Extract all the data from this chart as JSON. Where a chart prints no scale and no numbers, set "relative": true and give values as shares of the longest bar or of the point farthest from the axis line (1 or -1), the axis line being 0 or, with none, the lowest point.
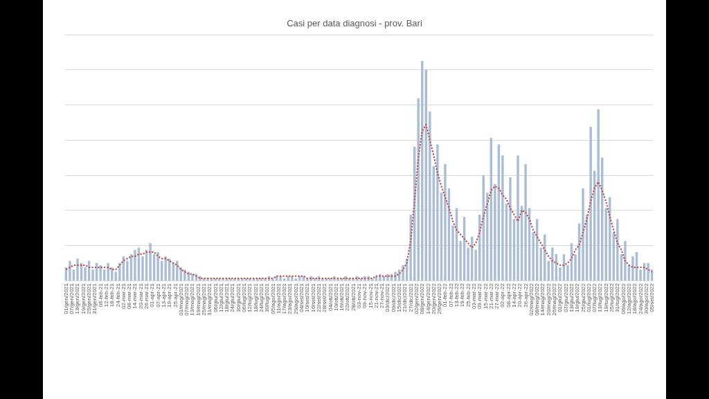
{
  "chart_data": {
    "type": "bar",
    "title": "Casi per data diagnosi - prov. Bari",
    "relative": true,
    "grid": "y",
    "x": [
      "2021-01-01",
      "2021-01-05",
      "2021-01-09",
      "2021-01-13",
      "2021-01-17",
      "2021-01-21",
      "2021-01-25",
      "2021-01-29",
      "2021-02-02",
      "2021-02-06",
      "2021-02-10",
      "2021-02-14",
      "2021-02-18",
      "2021-02-22",
      "2021-02-26",
      "2021-03-02",
      "2021-03-06",
      "2021-03-10",
      "2021-03-14",
      "2021-03-18",
      "2021-03-22",
      "2021-03-26",
      "2021-03-30",
      "2021-04-03",
      "2021-04-07",
      "2021-04-11",
      "2021-04-15",
      "2021-04-19",
      "2021-04-23",
      "2021-04-27",
      "2021-05-01",
      "2021-05-05",
      "2021-05-09",
      "2021-05-13",
      "2021-05-17",
      "2021-05-21",
      "2021-05-25",
      "2021-05-29",
      "2021-06-02",
      "2021-06-06",
      "2021-06-10",
      "2021-06-14",
      "2021-06-18",
      "2021-06-22",
      "2021-06-26",
      "2021-06-30",
      "2021-07-04",
      "2021-07-08",
      "2021-07-12",
      "2021-07-16",
      "2021-07-20",
      "2021-07-24",
      "2021-07-28",
      "2021-08-01",
      "2021-08-05",
      "2021-08-09",
      "2021-08-13",
      "2021-08-17",
      "2021-08-21",
      "2021-08-25",
      "2021-08-29",
      "2021-09-02",
      "2021-09-06",
      "2021-09-10",
      "2021-09-14",
      "2021-09-18",
      "2021-09-22",
      "2021-09-26",
      "2021-09-30",
      "2021-10-04",
      "2021-10-08",
      "2021-10-12",
      "2021-10-16",
      "2021-10-20",
      "2021-10-24",
      "2021-10-28",
      "2021-11-01",
      "2021-11-05",
      "2021-11-09",
      "2021-11-13",
      "2021-11-17",
      "2021-11-21",
      "2021-11-25",
      "2021-11-29",
      "2021-12-03",
      "2021-12-07",
      "2021-12-11",
      "2021-12-15",
      "2021-12-19",
      "2021-12-23",
      "2021-12-27",
      "2021-12-31",
      "2022-01-04",
      "2022-01-08",
      "2022-01-12",
      "2022-01-16",
      "2022-01-20",
      "2022-01-24",
      "2022-01-28",
      "2022-02-01",
      "2022-02-05",
      "2022-02-09",
      "2022-02-13",
      "2022-02-17",
      "2022-02-21",
      "2022-02-25",
      "2022-03-01",
      "2022-03-05",
      "2022-03-09",
      "2022-03-13",
      "2022-03-17",
      "2022-03-21",
      "2022-03-25",
      "2022-03-29",
      "2022-04-02",
      "2022-04-06",
      "2022-04-10",
      "2022-04-14",
      "2022-04-18",
      "2022-04-22",
      "2022-04-26",
      "2022-04-30",
      "2022-05-04",
      "2022-05-08",
      "2022-05-12",
      "2022-05-16",
      "2022-05-20",
      "2022-05-24",
      "2022-05-28",
      "2022-06-01",
      "2022-06-05",
      "2022-06-09",
      "2022-06-13",
      "2022-06-17",
      "2022-06-21",
      "2022-06-25",
      "2022-06-29",
      "2022-07-03",
      "2022-07-07",
      "2022-07-11",
      "2022-07-15",
      "2022-07-19",
      "2022-07-23",
      "2022-07-27",
      "2022-07-31",
      "2022-08-04",
      "2022-08-08",
      "2022-08-12",
      "2022-08-16",
      "2022-08-20",
      "2022-08-24",
      "2022-08-28",
      "2022-09-01",
      "2022-09-05"
    ],
    "xlim": [
      "2020-12-31",
      "2022-09-06"
    ],
    "xticks": [
      {
        "value": "2021-01-01",
        "label": "01/gen/2021"
      },
      {
        "value": "2021-01-07",
        "label": "07/gen/2021"
      },
      {
        "value": "2021-01-13",
        "label": "13/gen/2021"
      },
      {
        "value": "2021-01-19",
        "label": "19/gen/2021"
      },
      {
        "value": "2021-01-25",
        "label": "25/gen/2021"
      },
      {
        "value": "2021-01-31",
        "label": "31/gen/2021"
      },
      {
        "value": "2021-02-06",
        "label": "06-feb-21"
      },
      {
        "value": "2021-02-12",
        "label": "12-feb-21"
      },
      {
        "value": "2021-02-18",
        "label": "18-feb-21"
      },
      {
        "value": "2021-02-24",
        "label": "24-feb-21"
      },
      {
        "value": "2021-03-02",
        "label": "02-mar-21"
      },
      {
        "value": "2021-03-08",
        "label": "08-mar-21"
      },
      {
        "value": "2021-03-14",
        "label": "14-mar-21"
      },
      {
        "value": "2021-03-20",
        "label": "20-mar-21"
      },
      {
        "value": "2021-03-26",
        "label": "26-mar-21"
      },
      {
        "value": "2021-04-01",
        "label": "01-apr-21"
      },
      {
        "value": "2021-04-07",
        "label": "07-apr-21"
      },
      {
        "value": "2021-04-13",
        "label": "13-apr-21"
      },
      {
        "value": "2021-04-19",
        "label": "19-apr-21"
      },
      {
        "value": "2021-04-25",
        "label": "25-apr-21"
      },
      {
        "value": "2021-05-01",
        "label": "01/mag/2021"
      },
      {
        "value": "2021-05-07",
        "label": "07/mag/2021"
      },
      {
        "value": "2021-05-13",
        "label": "13/mag/2021"
      },
      {
        "value": "2021-05-19",
        "label": "19/mag/2021"
      },
      {
        "value": "2021-05-25",
        "label": "25/mag/2021"
      },
      {
        "value": "2021-05-31",
        "label": "31/mag/2021"
      },
      {
        "value": "2021-06-06",
        "label": "06/giu/2021"
      },
      {
        "value": "2021-06-12",
        "label": "12/giu/2021"
      },
      {
        "value": "2021-06-18",
        "label": "18/giu/2021"
      },
      {
        "value": "2021-06-24",
        "label": "24/giu/2021"
      },
      {
        "value": "2021-06-30",
        "label": "30/giu/2021"
      },
      {
        "value": "2021-07-06",
        "label": "06/lug/2021"
      },
      {
        "value": "2021-07-12",
        "label": "12/lug/2021"
      },
      {
        "value": "2021-07-18",
        "label": "18/lug/2021"
      },
      {
        "value": "2021-07-24",
        "label": "24/lug/2021"
      },
      {
        "value": "2021-07-30",
        "label": "30/lug/2021"
      },
      {
        "value": "2021-08-05",
        "label": "05/ago/2021"
      },
      {
        "value": "2021-08-11",
        "label": "11/ago/2021"
      },
      {
        "value": "2021-08-17",
        "label": "17/ago/2021"
      },
      {
        "value": "2021-08-23",
        "label": "23/ago/2021"
      },
      {
        "value": "2021-08-29",
        "label": "29/ago/2021"
      },
      {
        "value": "2021-09-04",
        "label": "04/set/2021"
      },
      {
        "value": "2021-09-10",
        "label": "10/set/2021"
      },
      {
        "value": "2021-09-16",
        "label": "16/set/2021"
      },
      {
        "value": "2021-09-22",
        "label": "22/set/2021"
      },
      {
        "value": "2021-09-28",
        "label": "28/set/2021"
      },
      {
        "value": "2021-10-04",
        "label": "04/ott/2021"
      },
      {
        "value": "2021-10-10",
        "label": "10/ott/2021"
      },
      {
        "value": "2021-10-16",
        "label": "16/ott/2021"
      },
      {
        "value": "2021-10-22",
        "label": "22/ott/2021"
      },
      {
        "value": "2021-10-28",
        "label": "28/ott/2021"
      },
      {
        "value": "2021-11-03",
        "label": "03-nov-21"
      },
      {
        "value": "2021-11-09",
        "label": "09-nov-21"
      },
      {
        "value": "2021-11-15",
        "label": "15-nov-21"
      },
      {
        "value": "2021-11-21",
        "label": "21-nov-21"
      },
      {
        "value": "2021-11-27",
        "label": "27-nov-21"
      },
      {
        "value": "2021-12-03",
        "label": "03/dic/2021"
      },
      {
        "value": "2021-12-09",
        "label": "09/dic/2021"
      },
      {
        "value": "2021-12-15",
        "label": "15/dic/2021"
      },
      {
        "value": "2021-12-21",
        "label": "21/dic/2021"
      },
      {
        "value": "2021-12-27",
        "label": "27/dic/2021"
      },
      {
        "value": "2022-01-02",
        "label": "02/gen/2022"
      },
      {
        "value": "2022-01-08",
        "label": "08/gen/2022"
      },
      {
        "value": "2022-01-14",
        "label": "14/gen/2022"
      },
      {
        "value": "2022-01-20",
        "label": "20/gen/2022"
      },
      {
        "value": "2022-01-26",
        "label": "26/gen/2022"
      },
      {
        "value": "2022-02-01",
        "label": "01-feb-22"
      },
      {
        "value": "2022-02-07",
        "label": "07-feb-22"
      },
      {
        "value": "2022-02-13",
        "label": "13-feb-22"
      },
      {
        "value": "2022-02-19",
        "label": "19-feb-22"
      },
      {
        "value": "2022-02-25",
        "label": "25-feb-22"
      },
      {
        "value": "2022-03-03",
        "label": "03-mar-22"
      },
      {
        "value": "2022-03-09",
        "label": "09-mar-22"
      },
      {
        "value": "2022-03-15",
        "label": "15-mar-22"
      },
      {
        "value": "2022-03-21",
        "label": "21-mar-22"
      },
      {
        "value": "2022-03-27",
        "label": "27-mar-22"
      },
      {
        "value": "2022-04-02",
        "label": "02-apr-22"
      },
      {
        "value": "2022-04-08",
        "label": "08-apr-22"
      },
      {
        "value": "2022-04-14",
        "label": "14-apr-22"
      },
      {
        "value": "2022-04-20",
        "label": "20-apr-22"
      },
      {
        "value": "2022-04-26",
        "label": "26-apr-22"
      },
      {
        "value": "2022-05-02",
        "label": "02/mag/2022"
      },
      {
        "value": "2022-05-08",
        "label": "08/mag/2022"
      },
      {
        "value": "2022-05-14",
        "label": "14/mag/2022"
      },
      {
        "value": "2022-05-20",
        "label": "20/mag/2022"
      },
      {
        "value": "2022-05-26",
        "label": "26/mag/2022"
      },
      {
        "value": "2022-06-01",
        "label": "01/giu/2022"
      },
      {
        "value": "2022-06-07",
        "label": "07/giu/2022"
      },
      {
        "value": "2022-06-13",
        "label": "13/giu/2022"
      },
      {
        "value": "2022-06-19",
        "label": "19/giu/2022"
      },
      {
        "value": "2022-06-25",
        "label": "25/giu/2022"
      },
      {
        "value": "2022-07-01",
        "label": "01/lug/2022"
      },
      {
        "value": "2022-07-07",
        "label": "07/lug/2022"
      },
      {
        "value": "2022-07-13",
        "label": "13/lug/2022"
      },
      {
        "value": "2022-07-19",
        "label": "19/lug/2022"
      },
      {
        "value": "2022-07-25",
        "label": "25/lug/2022"
      },
      {
        "value": "2022-07-31",
        "label": "31/lug/2022"
      },
      {
        "value": "2022-08-06",
        "label": "06/ago/2022"
      },
      {
        "value": "2022-08-12",
        "label": "12/ago/2022"
      },
      {
        "value": "2022-08-18",
        "label": "18/ago/2022"
      },
      {
        "value": "2022-08-24",
        "label": "24/ago/2022"
      },
      {
        "value": "2022-08-30",
        "label": "30/ago/2022"
      },
      {
        "value": "2022-09-05",
        "label": "05/set/2022"
      }
    ],
    "series": [
      {
        "color": "#a9bed6",
        "values": [
          0.06,
          0.09,
          0.05,
          0.1,
          0.08,
          0.06,
          0.09,
          0.05,
          0.08,
          0.07,
          0.05,
          0.08,
          0.06,
          0.04,
          0.08,
          0.11,
          0.09,
          0.12,
          0.14,
          0.15,
          0.11,
          0.14,
          0.17,
          0.12,
          0.13,
          0.09,
          0.11,
          0.1,
          0.08,
          0.09,
          0.06,
          0.05,
          0.04,
          0.03,
          0.03,
          0.02,
          0.01,
          0.01,
          0.01,
          0.01,
          0.01,
          0.01,
          0.01,
          0.01,
          0.01,
          0.01,
          0.01,
          0.01,
          0.01,
          0.01,
          0.01,
          0.01,
          0.01,
          0.02,
          0.01,
          0.02,
          0.02,
          0.01,
          0.02,
          0.02,
          0.01,
          0.02,
          0.02,
          0.01,
          0.02,
          0.01,
          0.02,
          0.01,
          0.01,
          0.01,
          0.02,
          0.01,
          0.01,
          0.02,
          0.01,
          0.01,
          0.02,
          0.01,
          0.02,
          0.02,
          0.01,
          0.02,
          0.03,
          0.02,
          0.03,
          0.03,
          0.04,
          0.05,
          0.07,
          0.1,
          0.3,
          0.61,
          0.83,
          1,
          0.96,
          0.77,
          0.52,
          0.62,
          0.4,
          0.53,
          0.42,
          0.25,
          0.33,
          0.18,
          0.29,
          0.15,
          0.2,
          0.14,
          0.3,
          0.48,
          0.4,
          0.65,
          0.44,
          0.62,
          0.57,
          0.35,
          0.47,
          0.28,
          0.57,
          0.34,
          0.53,
          0.33,
          0.22,
          0.28,
          0.15,
          0.21,
          0.09,
          0.15,
          0.12,
          0.06,
          0.12,
          0.07,
          0.17,
          0.12,
          0.26,
          0.42,
          0.3,
          0.7,
          0.5,
          0.78,
          0.56,
          0.33,
          0.38,
          0.22,
          0.28,
          0.12,
          0.18,
          0.07,
          0.11,
          0.13,
          0.05,
          0.08,
          0.08,
          0.05
        ]
      },
      {
        "type": "line",
        "color": "#c0504d",
        "line_style": "dotted",
        "marker": "none",
        "values": [
          0.05,
          0.06,
          0.07,
          0.07,
          0.07,
          0.07,
          0.06,
          0.06,
          0.06,
          0.06,
          0.06,
          0.06,
          0.05,
          0.05,
          0.07,
          0.09,
          0.1,
          0.11,
          0.11,
          0.12,
          0.12,
          0.13,
          0.13,
          0.13,
          0.11,
          0.1,
          0.1,
          0.09,
          0.08,
          0.07,
          0.05,
          0.04,
          0.03,
          0.03,
          0.02,
          0.01,
          0.01,
          0.01,
          0.01,
          0.01,
          0.01,
          0.01,
          0.01,
          0.01,
          0.01,
          0.01,
          0.01,
          0.01,
          0.01,
          0.01,
          0.01,
          0.01,
          0.01,
          0.01,
          0.01,
          0.02,
          0.02,
          0.02,
          0.02,
          0.02,
          0.02,
          0.02,
          0.02,
          0.01,
          0.01,
          0.01,
          0.01,
          0.01,
          0.01,
          0.01,
          0.01,
          0.01,
          0.01,
          0.01,
          0.01,
          0.01,
          0.01,
          0.01,
          0.01,
          0.01,
          0.01,
          0.02,
          0.02,
          0.02,
          0.02,
          0.02,
          0.02,
          0.03,
          0.05,
          0.08,
          0.18,
          0.36,
          0.56,
          0.68,
          0.71,
          0.64,
          0.57,
          0.49,
          0.43,
          0.38,
          0.33,
          0.27,
          0.23,
          0.21,
          0.19,
          0.17,
          0.15,
          0.17,
          0.22,
          0.29,
          0.35,
          0.41,
          0.43,
          0.42,
          0.39,
          0.37,
          0.33,
          0.3,
          0.27,
          0.32,
          0.31,
          0.28,
          0.23,
          0.2,
          0.17,
          0.14,
          0.11,
          0.09,
          0.08,
          0.07,
          0.07,
          0.08,
          0.1,
          0.14,
          0.16,
          0.22,
          0.28,
          0.36,
          0.42,
          0.45,
          0.41,
          0.36,
          0.29,
          0.23,
          0.17,
          0.14,
          0.09,
          0.07,
          0.06,
          0.06,
          0.06,
          0.06,
          0.05,
          0.04
        ]
      }
    ]
  }
}
